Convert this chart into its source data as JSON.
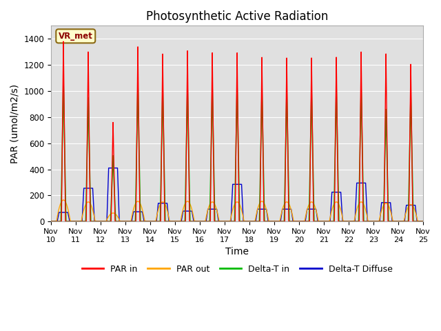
{
  "title": "Photosynthetic Active Radiation",
  "ylabel": "PAR (umol/m2/s)",
  "xlabel": "Time",
  "ylim": [
    0,
    1500
  ],
  "xlim": [
    0,
    15
  ],
  "legend_labels": [
    "PAR in",
    "PAR out",
    "Delta-T in",
    "Delta-T Diffuse"
  ],
  "legend_colors": [
    "#ff0000",
    "#ffa500",
    "#00bb00",
    "#0000cc"
  ],
  "station_label": "VR_met",
  "background_color": "#ffffff",
  "plot_bg_color": "#e0e0e0",
  "xtick_labels": [
    "Nov 10",
    "Nov 11",
    "Nov 12",
    "Nov 13",
    "Nov 14",
    "Nov 15",
    "Nov 16",
    "Nov 17",
    "Nov 18",
    "Nov 19",
    "Nov 20",
    "Nov 21",
    "Nov 22",
    "Nov 23",
    "Nov 24",
    "Nov 25"
  ],
  "xtick_positions": [
    0,
    1,
    2,
    3,
    4,
    5,
    6,
    7,
    8,
    9,
    10,
    11,
    12,
    13,
    14,
    15
  ],
  "ytick_labels": [
    "0",
    "200",
    "400",
    "600",
    "800",
    "1000",
    "1200",
    "1400"
  ],
  "ytick_positions": [
    0,
    200,
    400,
    600,
    800,
    1000,
    1200,
    1400
  ],
  "day_peaks_par_in": [
    1380,
    1300,
    760,
    1340,
    1285,
    1310,
    1295,
    1295,
    1260,
    1255,
    1255,
    1260,
    1300,
    1285,
    1205
  ],
  "day_peaks_par_out": [
    165,
    150,
    65,
    155,
    150,
    155,
    150,
    150,
    155,
    150,
    150,
    150,
    150,
    140,
    130
  ],
  "day_peaks_delta_t_in": [
    1080,
    950,
    505,
    1060,
    1030,
    1040,
    1050,
    1055,
    1015,
    1010,
    1010,
    1040,
    1030,
    860,
    980
  ],
  "day_peaks_delta_t_diffuse": [
    70,
    255,
    410,
    75,
    140,
    80,
    95,
    285,
    95,
    95,
    95,
    225,
    295,
    145,
    125
  ],
  "grid_color": "#ffffff",
  "title_fontsize": 12,
  "label_fontsize": 10,
  "tick_fontsize": 8.5
}
